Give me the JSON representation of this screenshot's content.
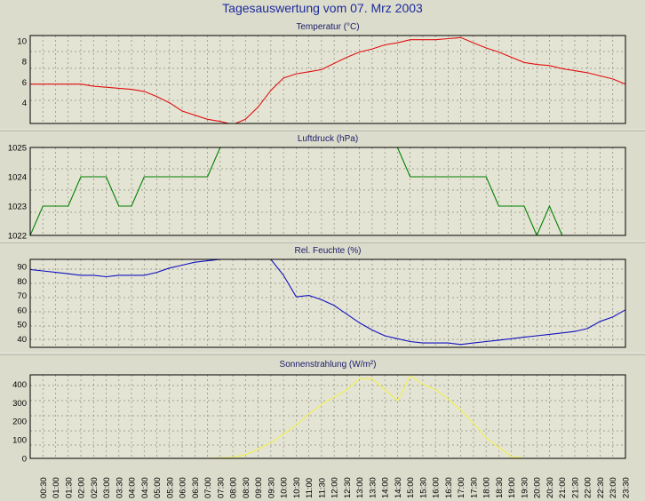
{
  "title": "Tagesauswertung vom 07. Mrz 2003",
  "x_labels": [
    "00:30",
    "01:00",
    "01:30",
    "02:00",
    "02:30",
    "03:00",
    "03:30",
    "04:00",
    "04:30",
    "05:00",
    "05:30",
    "06:00",
    "06:30",
    "07:00",
    "07:30",
    "08:00",
    "08:30",
    "09:00",
    "09:30",
    "10:00",
    "10:30",
    "11:00",
    "11:30",
    "12:00",
    "12:30",
    "13:00",
    "13:30",
    "14:00",
    "14:30",
    "15:00",
    "15:30",
    "16:00",
    "16:30",
    "17:00",
    "17:30",
    "18:00",
    "18:30",
    "19:00",
    "19:30",
    "20:00",
    "20:30",
    "21:00",
    "21:30",
    "22:00",
    "22:30",
    "23:00",
    "23:30"
  ],
  "chart_data": [
    {
      "type": "line",
      "title": "Temperatur (°C)",
      "ylim": [
        2,
        10.5
      ],
      "yticks": [
        4,
        6,
        8,
        10
      ],
      "color": "#e01010",
      "x": [
        "00:00",
        "00:30",
        "01:00",
        "01:30",
        "02:00",
        "02:30",
        "03:00",
        "03:30",
        "04:00",
        "04:30",
        "05:00",
        "05:30",
        "06:00",
        "06:30",
        "07:00",
        "07:30",
        "08:00",
        "08:30",
        "09:00",
        "09:30",
        "10:00",
        "10:30",
        "11:00",
        "11:30",
        "12:00",
        "12:30",
        "13:00",
        "13:30",
        "14:00",
        "14:30",
        "15:00",
        "15:30",
        "16:00",
        "16:30",
        "17:00",
        "17:30",
        "18:00",
        "18:30",
        "19:00",
        "19:30",
        "20:00",
        "20:30",
        "21:00",
        "21:30",
        "22:00",
        "22:30",
        "23:00",
        "23:30"
      ],
      "values": [
        5.8,
        5.8,
        5.8,
        5.8,
        5.8,
        5.6,
        5.5,
        5.4,
        5.3,
        5.1,
        4.6,
        4.0,
        3.2,
        2.8,
        2.4,
        2.2,
        1.9,
        2.4,
        3.6,
        5.2,
        6.4,
        6.8,
        7.0,
        7.2,
        7.8,
        8.4,
        8.9,
        9.2,
        9.6,
        9.8,
        10.1,
        10.1,
        10.1,
        10.2,
        10.3,
        9.8,
        9.3,
        8.9,
        8.4,
        7.9,
        7.7,
        7.6,
        7.3,
        7.1,
        6.9,
        6.6,
        6.3,
        5.8
      ]
    },
    {
      "type": "line",
      "title": "Luftdruck (hPa)",
      "ylim": [
        1022,
        1025
      ],
      "yticks": [
        1022,
        1023,
        1024,
        1025
      ],
      "color": "#008000",
      "x": [
        "00:00",
        "00:30",
        "01:00",
        "01:30",
        "02:00",
        "02:30",
        "03:00",
        "03:30",
        "04:00",
        "04:30",
        "05:00",
        "05:30",
        "06:00",
        "06:30",
        "07:00",
        "07:30",
        "08:00",
        "08:30",
        "09:00",
        "09:30",
        "10:00",
        "10:30",
        "11:00",
        "11:30",
        "12:00",
        "12:30",
        "13:00",
        "13:30",
        "14:00",
        "14:30",
        "15:00",
        "15:30",
        "16:00",
        "16:30",
        "17:00",
        "17:30",
        "18:00",
        "18:30",
        "19:00",
        "19:30",
        "20:00",
        "20:30",
        "21:00",
        "21:30",
        "22:00",
        "22:30",
        "23:00",
        "23:30"
      ],
      "values": [
        1022,
        1023,
        1023,
        1023,
        1024,
        1024,
        1024,
        1023,
        1023,
        1024,
        1024,
        1024,
        1024,
        1024,
        1024,
        1025,
        1025,
        1025,
        1025,
        1025,
        1025,
        1025,
        1025,
        1025,
        1025,
        1025,
        1025,
        1025,
        1025,
        1025,
        1024,
        1024,
        1024,
        1024,
        1024,
        1024,
        1024,
        1023,
        1023,
        1023,
        1022,
        1023,
        1022,
        1022,
        1022,
        1022,
        1022,
        1022
      ]
    },
    {
      "type": "line",
      "title": "Rel. Feuchte (%)",
      "ylim": [
        34,
        95
      ],
      "yticks": [
        40,
        50,
        60,
        70,
        80,
        90
      ],
      "color": "#1010c0",
      "x": [
        "00:00",
        "00:30",
        "01:00",
        "01:30",
        "02:00",
        "02:30",
        "03:00",
        "03:30",
        "04:00",
        "04:30",
        "05:00",
        "05:30",
        "06:00",
        "06:30",
        "07:00",
        "07:30",
        "08:00",
        "08:30",
        "09:00",
        "09:30",
        "10:00",
        "10:30",
        "11:00",
        "11:30",
        "12:00",
        "12:30",
        "13:00",
        "13:30",
        "14:00",
        "14:30",
        "15:00",
        "15:30",
        "16:00",
        "16:30",
        "17:00",
        "17:30",
        "18:00",
        "18:30",
        "19:00",
        "19:30",
        "20:00",
        "20:30",
        "21:00",
        "21:30",
        "22:00",
        "22:30",
        "23:00",
        "23:30"
      ],
      "values": [
        88,
        87,
        86,
        85,
        84,
        84,
        83,
        84,
        84,
        84,
        86,
        89,
        91,
        93,
        94,
        95,
        96,
        96,
        96,
        95,
        84,
        69,
        70,
        67,
        63,
        57,
        51,
        46,
        42,
        40,
        38,
        37,
        37,
        37,
        36,
        37,
        38,
        39,
        40,
        41,
        42,
        43,
        44,
        45,
        47,
        52,
        55,
        60
      ]
    },
    {
      "type": "line",
      "title": "Sonnenstrahlung (W/m²)",
      "ylim": [
        0,
        450
      ],
      "yticks": [
        0,
        100,
        200,
        300,
        400
      ],
      "color": "#f0f050",
      "x": [
        "00:00",
        "00:30",
        "01:00",
        "01:30",
        "02:00",
        "02:30",
        "03:00",
        "03:30",
        "04:00",
        "04:30",
        "05:00",
        "05:30",
        "06:00",
        "06:30",
        "07:00",
        "07:30",
        "08:00",
        "08:30",
        "09:00",
        "09:30",
        "10:00",
        "10:30",
        "11:00",
        "11:30",
        "12:00",
        "12:30",
        "13:00",
        "13:30",
        "14:00",
        "14:30",
        "15:00",
        "15:30",
        "16:00",
        "16:30",
        "17:00",
        "17:30",
        "18:00",
        "18:30",
        "19:00",
        "19:30",
        "20:00",
        "20:30",
        "21:00",
        "21:30",
        "22:00",
        "22:30",
        "23:00",
        "23:30"
      ],
      "values": [
        0,
        0,
        0,
        0,
        0,
        0,
        0,
        0,
        0,
        0,
        0,
        0,
        0,
        0,
        0,
        2,
        5,
        20,
        50,
        85,
        130,
        180,
        240,
        290,
        330,
        370,
        430,
        430,
        370,
        310,
        445,
        400,
        370,
        320,
        260,
        190,
        110,
        60,
        10,
        0,
        0,
        0,
        0,
        0,
        0,
        0,
        0,
        0
      ]
    }
  ]
}
